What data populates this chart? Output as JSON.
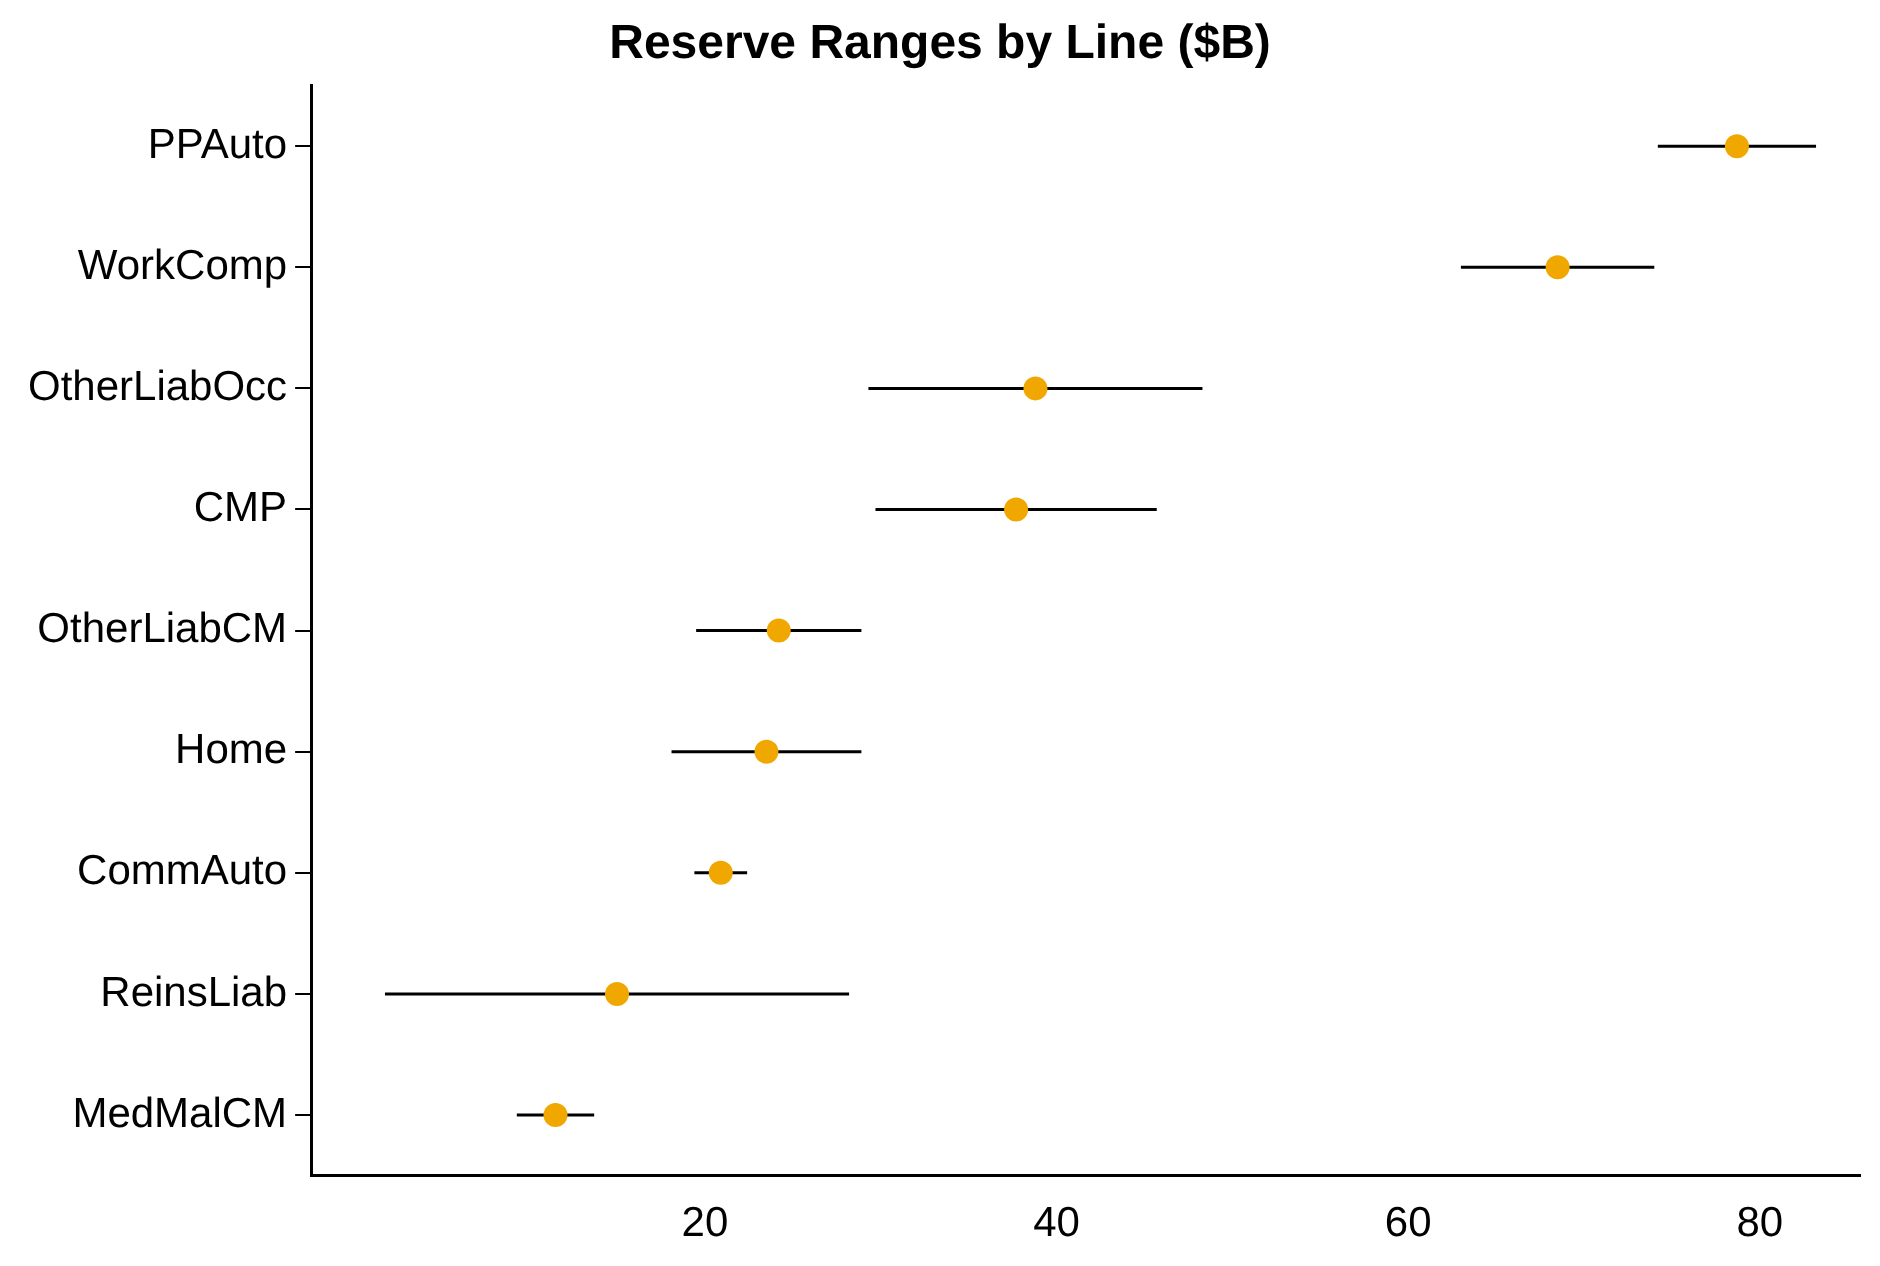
{
  "chart_data": {
    "type": "scatter",
    "title": "Reserve Ranges by Line ($B)",
    "orientation": "horizontal",
    "categories": [
      "PPAuto",
      "WorkComp",
      "OtherLiabOcc",
      "CMP",
      "OtherLiabCM",
      "Home",
      "CommAuto",
      "ReinsLiab",
      "MedMalCM"
    ],
    "values": [
      78.7,
      68.5,
      38.8,
      37.7,
      24.2,
      23.5,
      20.9,
      15.0,
      11.5
    ],
    "errors": [
      4.5,
      5.5,
      9.5,
      8.0,
      4.7,
      5.4,
      1.5,
      13.2,
      2.2
    ],
    "color": "#f0a800",
    "marker": "circle",
    "xlim": [
      -2.4,
      85.7
    ],
    "xticks": [
      20,
      40,
      60,
      80
    ],
    "grid": false,
    "legend": false
  }
}
